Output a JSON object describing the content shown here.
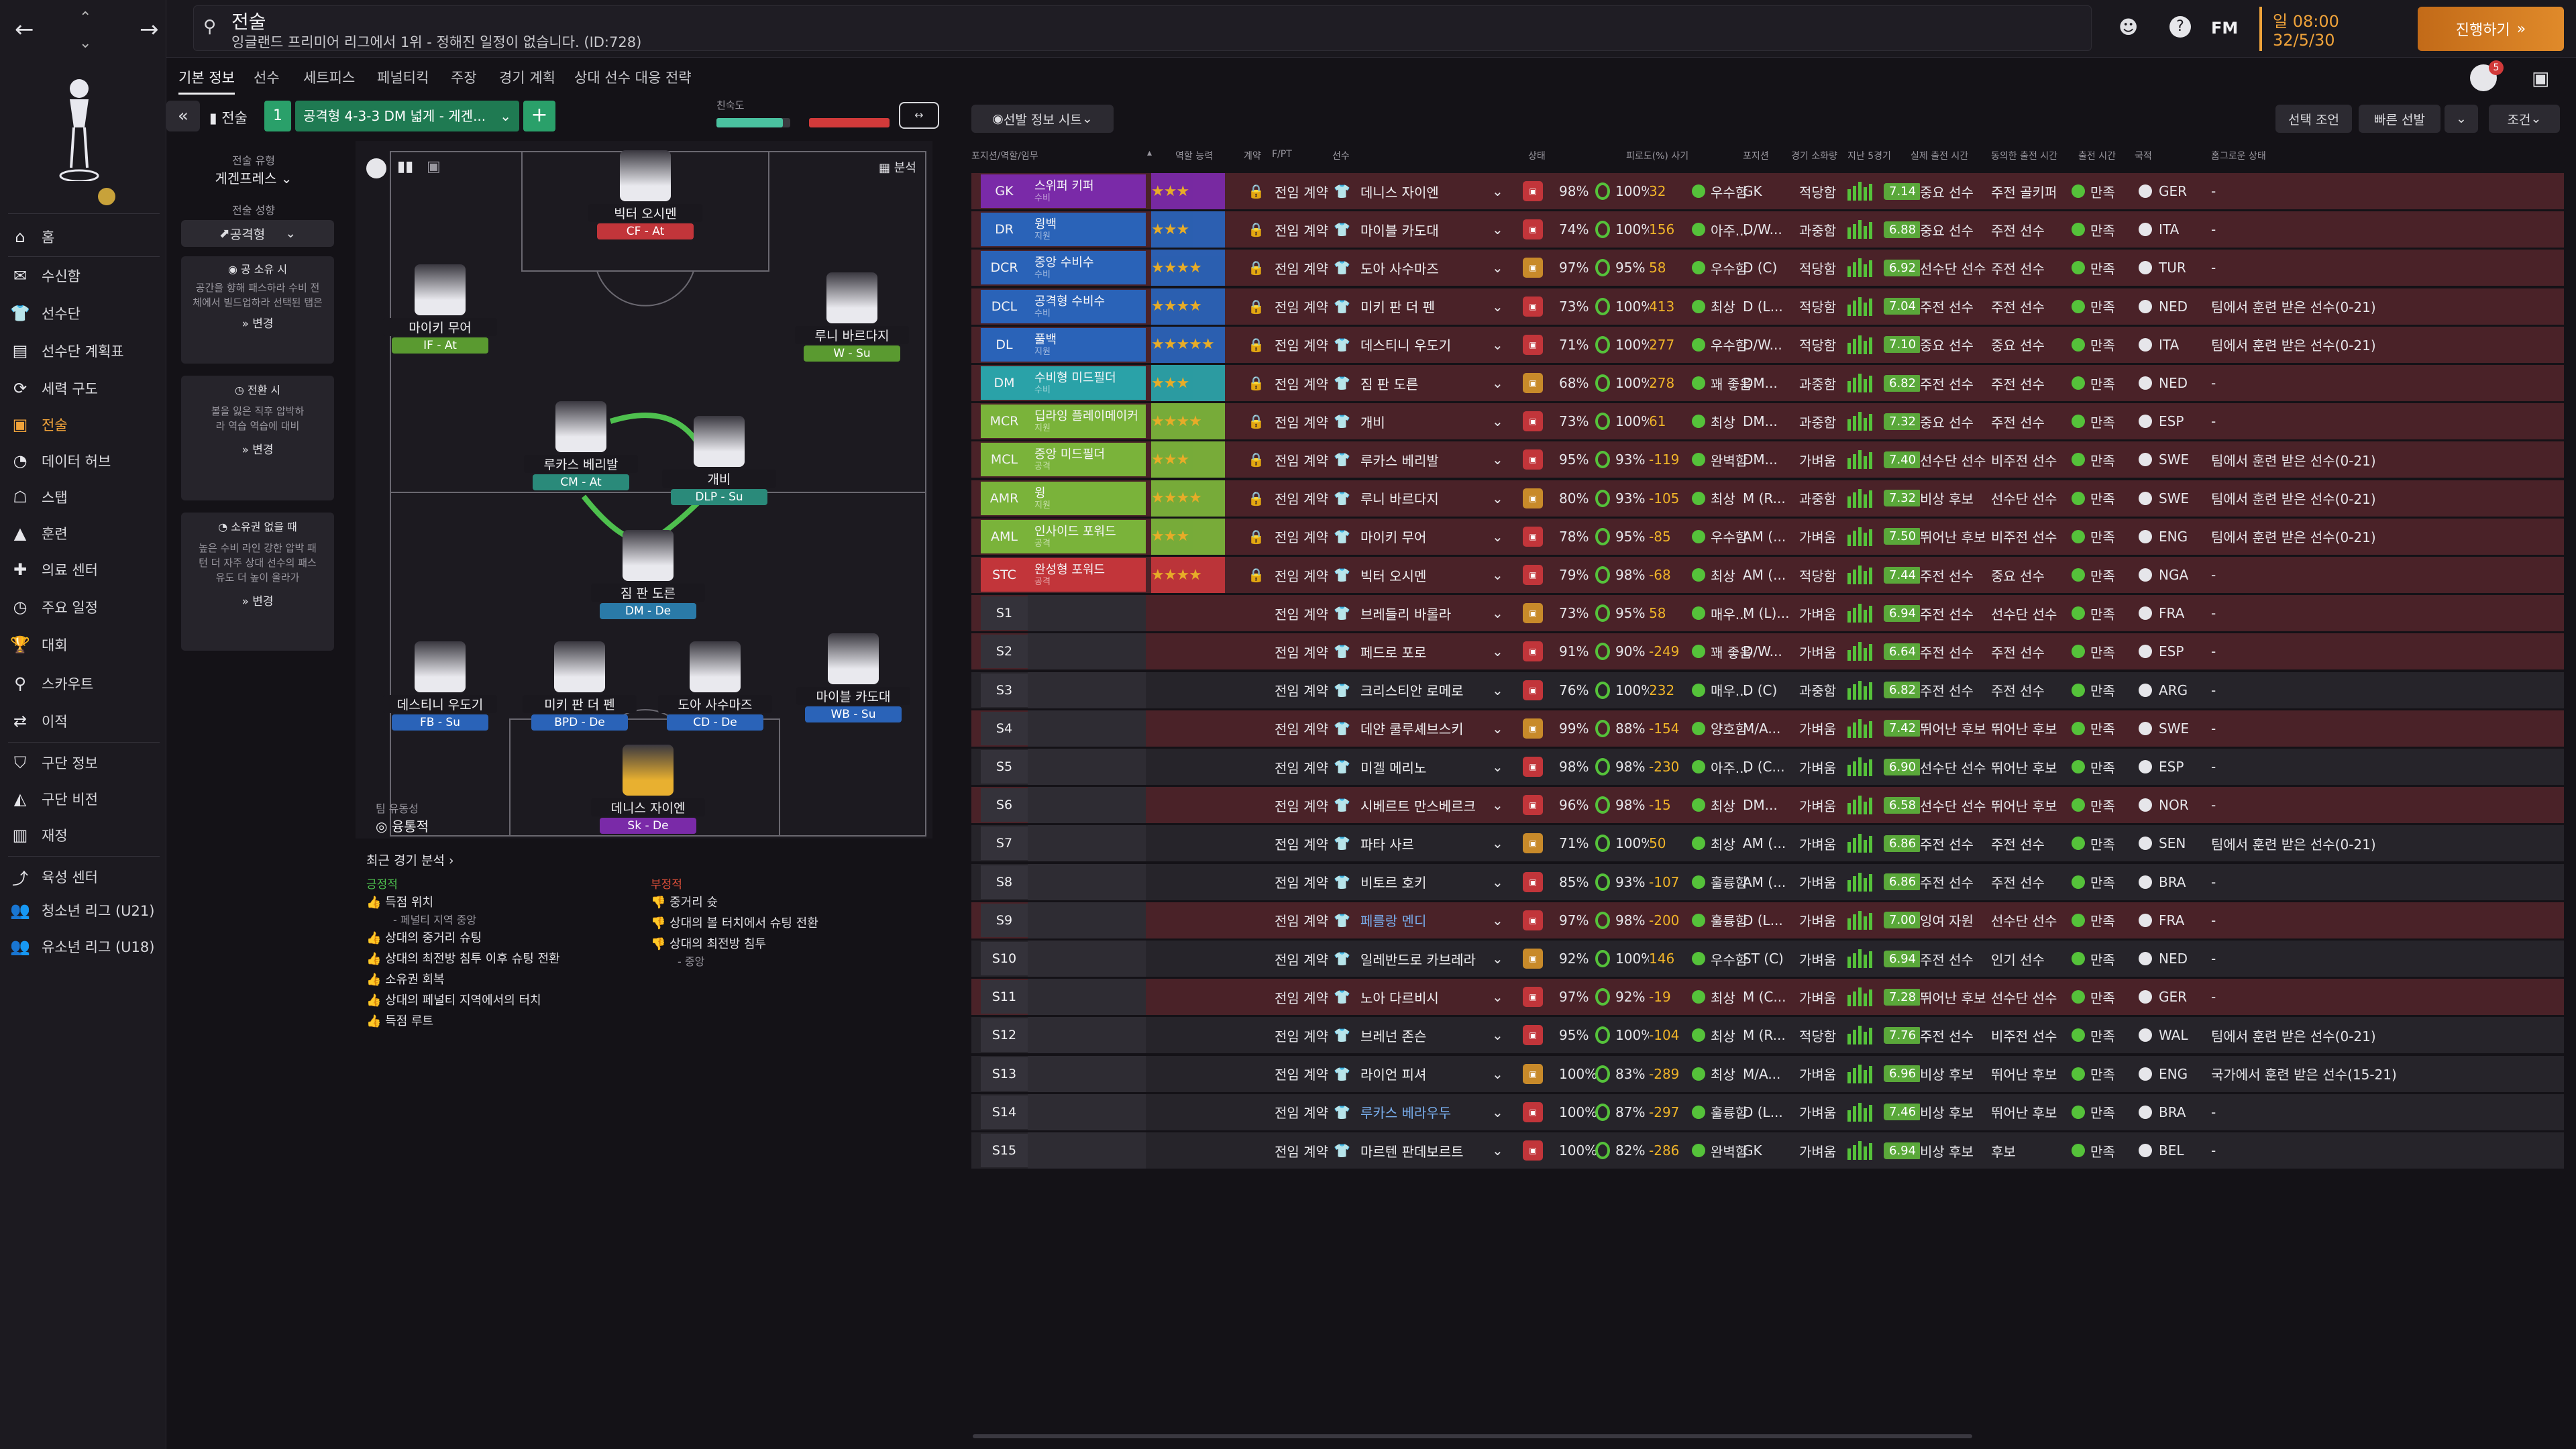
{
  "header": {
    "title": "전술",
    "subtitle": "잉글랜드 프리미어 리그에서 1위 - 정해진 일정이 없습니다. (ID:728)",
    "date_time": "일 08:00",
    "date": "32/5/30",
    "continue_label": "진행하기",
    "fm_label": "FM",
    "notif_count": "5"
  },
  "sidebar": {
    "items": [
      {
        "label": "홈",
        "icon": "home-icon"
      },
      {
        "label": "수신함",
        "icon": "inbox-icon"
      },
      {
        "label": "선수단",
        "icon": "squad-icon"
      },
      {
        "label": "선수단 계획표",
        "icon": "planner-icon"
      },
      {
        "label": "세력 구도",
        "icon": "dynamics-icon"
      },
      {
        "label": "전술",
        "icon": "tactics-icon"
      },
      {
        "label": "데이터 허브",
        "icon": "data-icon"
      },
      {
        "label": "스탭",
        "icon": "staff-icon"
      },
      {
        "label": "훈련",
        "icon": "training-icon"
      },
      {
        "label": "의료 센터",
        "icon": "medical-icon"
      },
      {
        "label": "주요 일정",
        "icon": "schedule-icon"
      },
      {
        "label": "대회",
        "icon": "trophy-icon"
      },
      {
        "label": "스카우트",
        "icon": "scout-icon"
      },
      {
        "label": "이적",
        "icon": "transfer-icon"
      },
      {
        "label": "구단 정보",
        "icon": "club-icon"
      },
      {
        "label": "구단 비전",
        "icon": "vision-icon"
      },
      {
        "label": "재정",
        "icon": "finance-icon"
      },
      {
        "label": "육성 센터",
        "icon": "dev-icon"
      },
      {
        "label": "청소년 리그 (U21)",
        "icon": "u21-icon"
      },
      {
        "label": "유소년 리그 (U18)",
        "icon": "u18-icon"
      }
    ]
  },
  "tabs": [
    "기본 정보",
    "선수",
    "세트피스",
    "페널티킥",
    "주장",
    "경기 계획",
    "상대 선수 대응 전략"
  ],
  "tactic_bar": {
    "label": "전술",
    "slot": "1",
    "formation": "공격형 4-3-3 DM 넓게 - 게겐...",
    "familiarity_label": "친숙도"
  },
  "left_panel": {
    "style_caption": "전술 유형",
    "style_value": "게겐프레스",
    "mentality_caption": "전술 성향",
    "mentality_value": "공격형",
    "in_possession_title": "공 소유 시",
    "in_possession_text": "공간을 향해 패스하라 수비 전체에서 빌드업하라 선택된 탭은",
    "in_transition_title": "전환 시",
    "in_transition_text": "볼을 잃은 직후 압박하라 역습 역습에 대비",
    "out_possession_title": "소유권 없을 때",
    "out_possession_text": "높은 수비 라인 강한 압박 패턴 더 자주 상대 선수의 패스 유도 더 높이 올라가",
    "change_label": "변경"
  },
  "pitch": {
    "analysis_label": "분석",
    "fluidity_caption": "팀 유동성",
    "fluidity_value": "융통적",
    "players": [
      {
        "name": "빅터 오시멘",
        "role": "CF - At"
      },
      {
        "name": "마이키 무어",
        "role": "IF - At"
      },
      {
        "name": "루니 바르다지",
        "role": "W - Su"
      },
      {
        "name": "루카스 베리발",
        "role": "CM - At"
      },
      {
        "name": "개비",
        "role": "DLP - Su"
      },
      {
        "name": "짐 판 도른",
        "role": "DM - De"
      },
      {
        "name": "데스티니 우도기",
        "role": "FB - Su"
      },
      {
        "name": "미키 판 더 펜",
        "role": "BPD - De"
      },
      {
        "name": "도아 사수마즈",
        "role": "CD - De"
      },
      {
        "name": "마이블 카도대",
        "role": "WB - Su"
      },
      {
        "name": "데니스 자이엔",
        "role": "Sk - De"
      }
    ]
  },
  "analysis": {
    "title": "최근 경기 분석",
    "positive_label": "긍정적",
    "negative_label": "부정적",
    "positives": [
      "득점 위치",
      "- 페널티 지역 중앙",
      "상대의 중거리 슈팅",
      "상대의 최전방 침투 이후 슈팅 전환",
      "소유권 회복",
      "상대의 페널티 지역에서의 터치",
      "득점 루트"
    ],
    "negatives": [
      "중거리 슛",
      "상대의 볼 터치에서 슈팅 전환",
      "상대의 최전방 침투",
      "- 중앙"
    ]
  },
  "table": {
    "selection_info_label": "선발 정보 시트",
    "filter_buttons": [
      "선택 조언",
      "빠른 선발",
      "조건"
    ],
    "headers": [
      "포지션/역할/임무",
      "역할 능력",
      "계약",
      "F/PT",
      "선수",
      "상태",
      "피로도(%) 사기",
      "포지션",
      "경기 소화량",
      "지난 5경기",
      "실제 출전 시간",
      "동의한 출전 시간",
      "출전 시간",
      "국적",
      "홈그로운 상태"
    ],
    "rows": [
      {
        "pos": "GK",
        "role": "스위퍼 키퍼",
        "duty": "수비",
        "stars": "★★★",
        "contract": "전임 계약",
        "name": "데니스 자이엔",
        "cond": "98%",
        "fit": "100%",
        "num": "32",
        "morale": "우수함",
        "posn": "GK",
        "load": "적당함",
        "rating": "7.14",
        "real": "중요 선수",
        "agreed": "주전 골키퍼",
        "time": "만족",
        "nat": "GER",
        "hg": "-"
      },
      {
        "pos": "DR",
        "role": "윙백",
        "duty": "지원",
        "stars": "★★★",
        "contract": "전임 계약",
        "name": "마이블 카도대",
        "cond": "74%",
        "fit": "100%",
        "num": "156",
        "morale": "아주...",
        "posn": "D/W...",
        "load": "과중함",
        "rating": "6.88",
        "real": "중요 선수",
        "agreed": "주전 선수",
        "time": "만족",
        "nat": "ITA",
        "hg": "-"
      },
      {
        "pos": "DCR",
        "role": "중앙 수비수",
        "duty": "수비",
        "stars": "★★★★",
        "contract": "전임 계약",
        "name": "도아 사수마즈",
        "cond": "97%",
        "fit": "95%",
        "num": "58",
        "morale": "우수함",
        "posn": "D (C)",
        "load": "적당함",
        "rating": "6.92",
        "real": "선수단 선수",
        "agreed": "주전 선수",
        "time": "만족",
        "nat": "TUR",
        "hg": "-"
      },
      {
        "pos": "DCL",
        "role": "공격형 수비수",
        "duty": "수비",
        "stars": "★★★★",
        "contract": "전임 계약",
        "name": "미키 판 더 펜",
        "cond": "73%",
        "fit": "100%",
        "num": "413",
        "morale": "최상",
        "posn": "D (L...",
        "load": "적당함",
        "rating": "7.04",
        "real": "주전 선수",
        "agreed": "주전 선수",
        "time": "만족",
        "nat": "NED",
        "hg": "팀에서 훈련 받은 선수(0-21)"
      },
      {
        "pos": "DL",
        "role": "풀백",
        "duty": "지원",
        "stars": "★★★★★",
        "contract": "전임 계약",
        "name": "데스티니 우도기",
        "cond": "71%",
        "fit": "100%",
        "num": "277",
        "morale": "우수함",
        "posn": "D/W...",
        "load": "적당함",
        "rating": "7.10",
        "real": "중요 선수",
        "agreed": "중요 선수",
        "time": "만족",
        "nat": "ITA",
        "hg": "팀에서 훈련 받은 선수(0-21)"
      },
      {
        "pos": "DM",
        "role": "수비형 미드필더",
        "duty": "수비",
        "stars": "★★★",
        "contract": "전임 계약",
        "name": "짐 판 도른",
        "cond": "68%",
        "fit": "100%",
        "num": "278",
        "morale": "꽤 좋음",
        "posn": "DM...",
        "load": "과중함",
        "rating": "6.82",
        "real": "주전 선수",
        "agreed": "주전 선수",
        "time": "만족",
        "nat": "NED",
        "hg": "-"
      },
      {
        "pos": "MCR",
        "role": "딥라잉 플레이메이커",
        "duty": "지원",
        "stars": "★★★★",
        "contract": "전임 계약",
        "name": "개비",
        "cond": "73%",
        "fit": "100%",
        "num": "61",
        "morale": "최상",
        "posn": "DM...",
        "load": "과중함",
        "rating": "7.32",
        "real": "중요 선수",
        "agreed": "주전 선수",
        "time": "만족",
        "nat": "ESP",
        "hg": "-"
      },
      {
        "pos": "MCL",
        "role": "중앙 미드필더",
        "duty": "공격",
        "stars": "★★★",
        "contract": "전임 계약",
        "name": "루카스 베리발",
        "cond": "95%",
        "fit": "93%",
        "num": "-119",
        "morale": "완벽함",
        "posn": "DM...",
        "load": "가벼움",
        "rating": "7.40",
        "real": "선수단 선수",
        "agreed": "비주전 선수",
        "time": "만족",
        "nat": "SWE",
        "hg": "팀에서 훈련 받은 선수(0-21)"
      },
      {
        "pos": "AMR",
        "role": "윙",
        "duty": "지원",
        "stars": "★★★★",
        "contract": "전임 계약",
        "name": "루니 바르다지",
        "cond": "80%",
        "fit": "93%",
        "num": "-105",
        "morale": "최상",
        "posn": "M (R...",
        "load": "과중함",
        "rating": "7.32",
        "real": "비상 후보",
        "agreed": "선수단 선수",
        "time": "만족",
        "nat": "SWE",
        "hg": "팀에서 훈련 받은 선수(0-21)"
      },
      {
        "pos": "AML",
        "role": "인사이드 포워드",
        "duty": "공격",
        "stars": "★★★",
        "contract": "전임 계약",
        "name": "마이키 무어",
        "cond": "78%",
        "fit": "95%",
        "num": "-85",
        "morale": "우수함",
        "posn": "AM (...",
        "load": "가벼움",
        "rating": "7.50",
        "real": "뛰어난 후보",
        "agreed": "비주전 선수",
        "time": "만족",
        "nat": "ENG",
        "hg": "팀에서 훈련 받은 선수(0-21)"
      },
      {
        "pos": "STC",
        "role": "완성형 포워드",
        "duty": "공격",
        "stars": "★★★★",
        "contract": "전임 계약",
        "name": "빅터 오시멘",
        "cond": "79%",
        "fit": "98%",
        "num": "-68",
        "morale": "최상",
        "posn": "AM (...",
        "load": "적당함",
        "rating": "7.44",
        "real": "주전 선수",
        "agreed": "중요 선수",
        "time": "만족",
        "nat": "NGA",
        "hg": "-"
      },
      {
        "pos": "S1",
        "role": "",
        "duty": "",
        "stars": "",
        "contract": "전임 계약",
        "name": "브레들리 바롤라",
        "cond": "73%",
        "fit": "95%",
        "num": "58",
        "morale": "매우...",
        "posn": "M (L)...",
        "load": "가벼움",
        "rating": "6.94",
        "real": "주전 선수",
        "agreed": "선수단 선수",
        "time": "만족",
        "nat": "FRA",
        "hg": "-"
      },
      {
        "pos": "S2",
        "role": "",
        "duty": "",
        "stars": "",
        "contract": "전임 계약",
        "name": "페드로 포로",
        "cond": "91%",
        "fit": "90%",
        "num": "-249",
        "morale": "꽤 좋음",
        "posn": "D/W...",
        "load": "가벼움",
        "rating": "6.64",
        "real": "주전 선수",
        "agreed": "주전 선수",
        "time": "만족",
        "nat": "ESP",
        "hg": "-"
      },
      {
        "pos": "S3",
        "role": "",
        "duty": "",
        "stars": "",
        "contract": "전임 계약",
        "name": "크리스티안 로메로",
        "cond": "76%",
        "fit": "100%",
        "num": "232",
        "morale": "매우...",
        "posn": "D (C)",
        "load": "과중함",
        "rating": "6.82",
        "real": "주전 선수",
        "agreed": "주전 선수",
        "time": "만족",
        "nat": "ARG",
        "hg": "-"
      },
      {
        "pos": "S4",
        "role": "",
        "duty": "",
        "stars": "",
        "contract": "전임 계약",
        "name": "데얀 쿨루셰브스키",
        "cond": "99%",
        "fit": "88%",
        "num": "-154",
        "morale": "양호함",
        "posn": "M/A...",
        "load": "가벼움",
        "rating": "7.42",
        "real": "뛰어난 후보",
        "agreed": "뛰어난 후보",
        "time": "만족",
        "nat": "SWE",
        "hg": "-"
      },
      {
        "pos": "S5",
        "role": "",
        "duty": "",
        "stars": "",
        "contract": "전임 계약",
        "name": "미겔 메리노",
        "cond": "98%",
        "fit": "98%",
        "num": "-230",
        "morale": "아주...",
        "posn": "D (C...",
        "load": "가벼움",
        "rating": "6.90",
        "real": "선수단 선수",
        "agreed": "뛰어난 후보",
        "time": "만족",
        "nat": "ESP",
        "hg": "-"
      },
      {
        "pos": "S6",
        "role": "",
        "duty": "",
        "stars": "",
        "contract": "전임 계약",
        "name": "시베르트 만스베르크",
        "cond": "96%",
        "fit": "98%",
        "num": "-15",
        "morale": "최상",
        "posn": "DM...",
        "load": "가벼움",
        "rating": "6.58",
        "real": "선수단 선수",
        "agreed": "뛰어난 후보",
        "time": "만족",
        "nat": "NOR",
        "hg": "-"
      },
      {
        "pos": "S7",
        "role": "",
        "duty": "",
        "stars": "",
        "contract": "전임 계약",
        "name": "파타 사르",
        "cond": "71%",
        "fit": "100%",
        "num": "50",
        "morale": "최상",
        "posn": "AM (...",
        "load": "가벼움",
        "rating": "6.86",
        "real": "주전 선수",
        "agreed": "주전 선수",
        "time": "만족",
        "nat": "SEN",
        "hg": "팀에서 훈련 받은 선수(0-21)"
      },
      {
        "pos": "S8",
        "role": "",
        "duty": "",
        "stars": "",
        "contract": "전임 계약",
        "name": "비토르 호키",
        "cond": "85%",
        "fit": "93%",
        "num": "-107",
        "morale": "훌륭함",
        "posn": "AM (...",
        "load": "가벼움",
        "rating": "6.86",
        "real": "주전 선수",
        "agreed": "주전 선수",
        "time": "만족",
        "nat": "BRA",
        "hg": "-"
      },
      {
        "pos": "S9",
        "role": "",
        "duty": "",
        "stars": "",
        "contract": "전임 계약",
        "name": "페를랑 멘디",
        "cond": "97%",
        "fit": "98%",
        "num": "-200",
        "morale": "훌륭함",
        "posn": "D (L...",
        "load": "가벼움",
        "rating": "7.00",
        "real": "잉여 자원",
        "agreed": "선수단 선수",
        "time": "만족",
        "nat": "FRA",
        "hg": "-"
      },
      {
        "pos": "S10",
        "role": "",
        "duty": "",
        "stars": "",
        "contract": "전임 계약",
        "name": "일레반드로 카브레라",
        "cond": "92%",
        "fit": "100%",
        "num": "146",
        "morale": "우수함",
        "posn": "ST (C)",
        "load": "가벼움",
        "rating": "6.94",
        "real": "주전 선수",
        "agreed": "인기 선수",
        "time": "만족",
        "nat": "NED",
        "hg": "-"
      },
      {
        "pos": "S11",
        "role": "",
        "duty": "",
        "stars": "",
        "contract": "전임 계약",
        "name": "노아 다르비시",
        "cond": "97%",
        "fit": "92%",
        "num": "-19",
        "morale": "최상",
        "posn": "M (C...",
        "load": "가벼움",
        "rating": "7.28",
        "real": "뛰어난 후보",
        "agreed": "선수단 선수",
        "time": "만족",
        "nat": "GER",
        "hg": "-"
      },
      {
        "pos": "S12",
        "role": "",
        "duty": "",
        "stars": "",
        "contract": "전임 계약",
        "name": "브레넌 존슨",
        "cond": "95%",
        "fit": "100%",
        "num": "-104",
        "morale": "최상",
        "posn": "M (R...",
        "load": "적당함",
        "rating": "7.76",
        "real": "주전 선수",
        "agreed": "비주전 선수",
        "time": "만족",
        "nat": "WAL",
        "hg": "팀에서 훈련 받은 선수(0-21)"
      },
      {
        "pos": "S13",
        "role": "",
        "duty": "",
        "stars": "",
        "contract": "전임 계약",
        "name": "라이언 피셔",
        "cond": "100%",
        "fit": "83%",
        "num": "-289",
        "morale": "최상",
        "posn": "M/A...",
        "load": "가벼움",
        "rating": "6.96",
        "real": "비상 후보",
        "agreed": "뛰어난 후보",
        "time": "만족",
        "nat": "ENG",
        "hg": "국가에서 훈련 받은 선수(15-21)"
      },
      {
        "pos": "S14",
        "role": "",
        "duty": "",
        "stars": "",
        "contract": "전임 계약",
        "name": "루카스 베라우두",
        "cond": "100%",
        "fit": "87%",
        "num": "-297",
        "morale": "훌륭함",
        "posn": "D (L...",
        "load": "가벼움",
        "rating": "7.46",
        "real": "비상 후보",
        "agreed": "뛰어난 후보",
        "time": "만족",
        "nat": "BRA",
        "hg": "-"
      },
      {
        "pos": "S15",
        "role": "",
        "duty": "",
        "stars": "",
        "contract": "전임 계약",
        "name": "마르텐 판데보르트",
        "cond": "100%",
        "fit": "82%",
        "num": "-286",
        "morale": "완벽함",
        "posn": "GK",
        "load": "가벼움",
        "rating": "6.94",
        "real": "비상 후보",
        "agreed": "후보",
        "time": "만족",
        "nat": "BEL",
        "hg": "-"
      }
    ]
  },
  "colors": {
    "accent": "#f0a33a",
    "red_row": "#4a2228",
    "gk": "#7a2aa8",
    "def": "#2a63b8",
    "mid": "#2aa2a8",
    "att": "#7ab33a",
    "st": "#c2353a"
  }
}
